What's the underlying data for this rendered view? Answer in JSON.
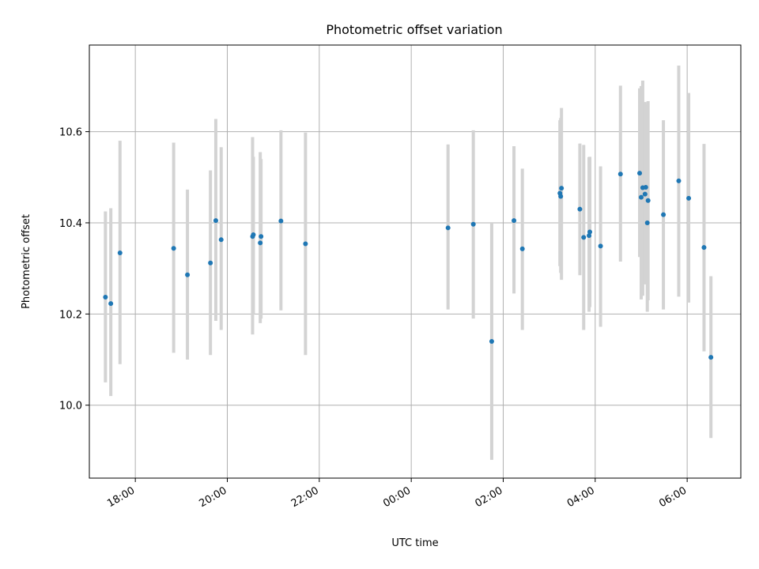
{
  "chart_data": {
    "type": "scatter",
    "title": "Photometric offset variation",
    "xlabel": "UTC time",
    "ylabel": "Photometric offset",
    "x_axis_type": "time",
    "x_start_date": "day 1",
    "xlim": [
      "17:00",
      "07:10"
    ],
    "ylim": [
      9.84,
      10.79
    ],
    "yticks": [
      10.0,
      10.2,
      10.4,
      10.6
    ],
    "ytick_labels": [
      "10.0",
      "10.2",
      "10.4",
      "10.6"
    ],
    "xticks": [
      "18:00",
      "20:00",
      "22:00",
      "00:00",
      "02:00",
      "04:00",
      "06:00"
    ],
    "xtick_labels": [
      "18:00",
      "20:00",
      "22:00",
      "00:00",
      "02:00",
      "04:00",
      "06:00"
    ],
    "grid": true,
    "colors": {
      "points": "#1f77b4",
      "errorbars": "#d3d3d3",
      "grid": "#b0b0b0"
    },
    "series": [
      {
        "points": [
          {
            "t": "17:21",
            "y": 10.237,
            "lo": 10.05,
            "hi": 10.425
          },
          {
            "t": "17:28",
            "y": 10.223,
            "lo": 10.02,
            "hi": 10.432
          },
          {
            "t": "17:40",
            "y": 10.334,
            "lo": 10.09,
            "hi": 10.58
          },
          {
            "t": "18:50",
            "y": 10.344,
            "lo": 10.115,
            "hi": 10.576
          },
          {
            "t": "19:08",
            "y": 10.286,
            "lo": 10.1,
            "hi": 10.473
          },
          {
            "t": "19:38",
            "y": 10.312,
            "lo": 10.11,
            "hi": 10.515
          },
          {
            "t": "19:45",
            "y": 10.405,
            "lo": 10.185,
            "hi": 10.628
          },
          {
            "t": "19:52",
            "y": 10.363,
            "lo": 10.165,
            "hi": 10.566
          },
          {
            "t": "20:33",
            "y": 10.37,
            "lo": 10.155,
            "hi": 10.588
          },
          {
            "t": "20:34",
            "y": 10.374,
            "lo": 10.2,
            "hi": 10.545
          },
          {
            "t": "20:43",
            "y": 10.356,
            "lo": 10.18,
            "hi": 10.555
          },
          {
            "t": "20:44",
            "y": 10.37,
            "lo": 10.19,
            "hi": 10.54
          },
          {
            "t": "21:10",
            "y": 10.404,
            "lo": 10.208,
            "hi": 10.603
          },
          {
            "t": "21:42",
            "y": 10.354,
            "lo": 10.11,
            "hi": 10.598
          },
          {
            "t": "00:48",
            "y": 10.389,
            "lo": 10.21,
            "hi": 10.572
          },
          {
            "t": "01:21",
            "y": 10.397,
            "lo": 10.19,
            "hi": 10.603
          },
          {
            "t": "01:45",
            "y": 10.14,
            "lo": 9.88,
            "hi": 10.4
          },
          {
            "t": "02:14",
            "y": 10.405,
            "lo": 10.245,
            "hi": 10.568
          },
          {
            "t": "02:25",
            "y": 10.343,
            "lo": 10.165,
            "hi": 10.519
          },
          {
            "t": "03:14",
            "y": 10.465,
            "lo": 10.305,
            "hi": 10.625
          },
          {
            "t": "03:15",
            "y": 10.458,
            "lo": 10.29,
            "hi": 10.63
          },
          {
            "t": "03:16",
            "y": 10.476,
            "lo": 10.275,
            "hi": 10.652
          },
          {
            "t": "03:40",
            "y": 10.43,
            "lo": 10.285,
            "hi": 10.574
          },
          {
            "t": "03:45",
            "y": 10.368,
            "lo": 10.165,
            "hi": 10.571
          },
          {
            "t": "03:52",
            "y": 10.372,
            "lo": 10.205,
            "hi": 10.544
          },
          {
            "t": "03:53",
            "y": 10.38,
            "lo": 10.215,
            "hi": 10.545
          },
          {
            "t": "04:07",
            "y": 10.349,
            "lo": 10.172,
            "hi": 10.524
          },
          {
            "t": "04:33",
            "y": 10.507,
            "lo": 10.315,
            "hi": 10.701
          },
          {
            "t": "04:58",
            "y": 10.509,
            "lo": 10.325,
            "hi": 10.695
          },
          {
            "t": "05:00",
            "y": 10.456,
            "lo": 10.232,
            "hi": 10.7
          },
          {
            "t": "05:02",
            "y": 10.477,
            "lo": 10.24,
            "hi": 10.712
          },
          {
            "t": "05:05",
            "y": 10.463,
            "lo": 10.265,
            "hi": 10.665
          },
          {
            "t": "05:06",
            "y": 10.478,
            "lo": 10.29,
            "hi": 10.66
          },
          {
            "t": "05:08",
            "y": 10.4,
            "lo": 10.205,
            "hi": 10.6
          },
          {
            "t": "05:09",
            "y": 10.449,
            "lo": 10.23,
            "hi": 10.667
          },
          {
            "t": "05:29",
            "y": 10.418,
            "lo": 10.21,
            "hi": 10.625
          },
          {
            "t": "05:49",
            "y": 10.492,
            "lo": 10.238,
            "hi": 10.745
          },
          {
            "t": "06:02",
            "y": 10.454,
            "lo": 10.225,
            "hi": 10.685
          },
          {
            "t": "06:22",
            "y": 10.346,
            "lo": 10.118,
            "hi": 10.573
          },
          {
            "t": "06:31",
            "y": 10.105,
            "lo": 9.928,
            "hi": 10.283
          }
        ]
      }
    ]
  }
}
